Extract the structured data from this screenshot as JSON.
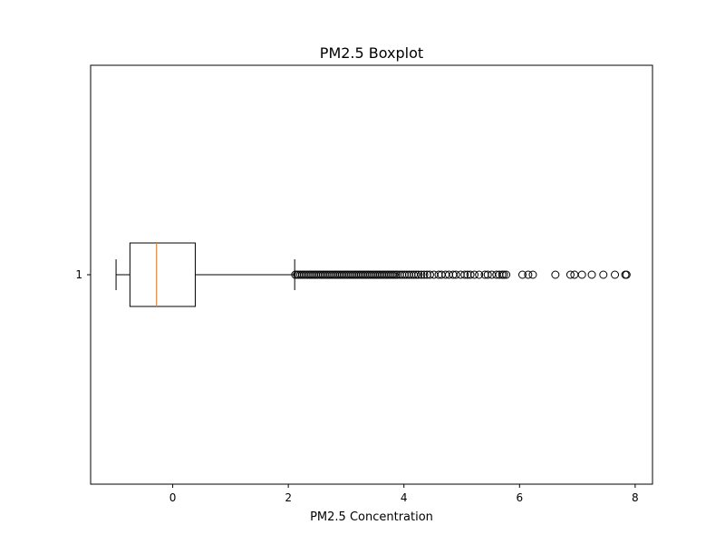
{
  "chart_data": {
    "type": "boxplot",
    "title": "PM2.5 Boxplot",
    "xlabel": "PM2.5 Concentration",
    "ylabel": "",
    "orientation": "horizontal",
    "xlim": [
      -1.42,
      8.3
    ],
    "xticks": [
      0,
      2,
      4,
      6,
      8
    ],
    "category_ticks": [
      "1"
    ],
    "grid": false,
    "colors": {
      "box": "#000000",
      "median": "#ff7f0e",
      "whisker": "#000000",
      "flier": "#000000"
    },
    "boxes": [
      {
        "name": "1",
        "whisker_low": -0.98,
        "q1": -0.74,
        "median": -0.28,
        "q3": 0.39,
        "whisker_high": 2.11,
        "outliers": [
          2.12,
          2.15,
          2.18,
          2.21,
          2.24,
          2.27,
          2.3,
          2.33,
          2.36,
          2.39,
          2.42,
          2.45,
          2.48,
          2.51,
          2.54,
          2.57,
          2.6,
          2.63,
          2.66,
          2.69,
          2.72,
          2.75,
          2.78,
          2.81,
          2.84,
          2.87,
          2.9,
          2.93,
          2.96,
          2.99,
          3.02,
          3.05,
          3.08,
          3.11,
          3.14,
          3.17,
          3.2,
          3.23,
          3.26,
          3.29,
          3.32,
          3.35,
          3.38,
          3.41,
          3.44,
          3.47,
          3.5,
          3.53,
          3.56,
          3.59,
          3.62,
          3.65,
          3.68,
          3.71,
          3.74,
          3.77,
          3.8,
          3.83,
          3.86,
          3.89,
          3.93,
          3.97,
          4.01,
          4.05,
          4.09,
          4.13,
          4.17,
          4.21,
          4.25,
          4.3,
          4.35,
          4.4,
          4.45,
          4.52,
          4.6,
          4.65,
          4.72,
          4.78,
          4.85,
          4.9,
          4.98,
          5.05,
          5.1,
          5.15,
          5.22,
          5.3,
          5.4,
          5.45,
          5.52,
          5.6,
          5.65,
          5.7,
          5.73,
          5.77,
          6.05,
          6.15,
          6.23,
          6.62,
          6.88,
          6.95,
          7.08,
          7.25,
          7.45,
          7.65,
          7.83,
          7.85
        ]
      }
    ]
  }
}
